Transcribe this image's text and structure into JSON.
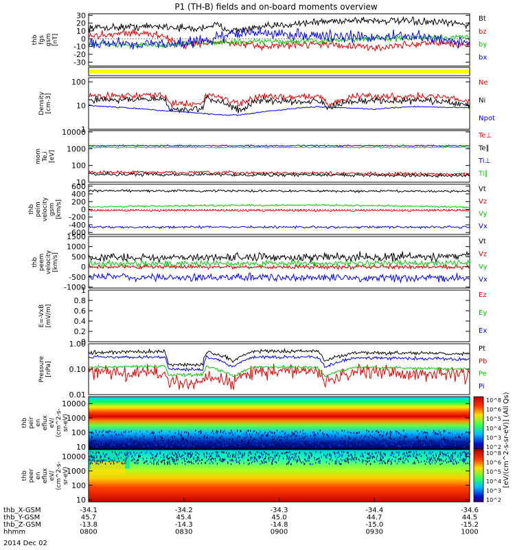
{
  "title": "P1 (TH-B) fields and on-board moments overview",
  "date_label": "2014 Dec 02",
  "colors": {
    "black": "#000000",
    "red": "#e00000",
    "green": "#00cc00",
    "blue": "#0000ee",
    "yellow": "#ffff00"
  },
  "chart_data": [
    {
      "id": "fgs",
      "type": "line",
      "ylabel": [
        "thb",
        "fgs",
        "gsm",
        "[nT]"
      ],
      "ylim": [
        -35,
        32
      ],
      "scale": "linear",
      "yticks": [
        30,
        20,
        10,
        0,
        -10,
        -20,
        -30
      ],
      "series": [
        {
          "name": "Bt",
          "color": "black",
          "x": [
            0,
            20,
            28,
            33,
            38,
            45,
            55,
            70,
            85,
            95,
            100
          ],
          "values": [
            14,
            16,
            12,
            18,
            10,
            14,
            20,
            24,
            22,
            20,
            18
          ],
          "noise": 4
        },
        {
          "name": "bz",
          "color": "red",
          "x": [
            0,
            10,
            18,
            25,
            33,
            45,
            60,
            75,
            90,
            100
          ],
          "values": [
            3,
            8,
            5,
            -8,
            -4,
            -10,
            -6,
            -12,
            -5,
            -8
          ],
          "noise": 4
        },
        {
          "name": "by",
          "color": "green",
          "x": [
            0,
            20,
            30,
            45,
            60,
            75,
            90,
            100
          ],
          "values": [
            -7,
            -9,
            -5,
            -4,
            -3,
            0,
            1,
            2
          ],
          "noise": 3
        },
        {
          "name": "bx",
          "color": "blue",
          "x": [
            0,
            20,
            30,
            40,
            55,
            70,
            85,
            100
          ],
          "values": [
            -5,
            -7,
            -3,
            8,
            5,
            2,
            3,
            -5
          ],
          "noise": 6
        }
      ]
    },
    {
      "id": "flags",
      "type": "bar",
      "ylabel": []
    },
    {
      "id": "density",
      "type": "line",
      "ylabel": [
        "Density",
        "[cm-3]"
      ],
      "ylim": [
        1,
        150
      ],
      "scale": "log",
      "yticks": [
        100,
        10,
        1
      ],
      "series": [
        {
          "name": "Ne",
          "color": "red",
          "x": [
            0,
            20,
            21,
            30,
            31,
            40,
            45,
            50,
            55,
            60,
            63,
            70,
            80,
            90,
            100
          ],
          "values": [
            25,
            27,
            12,
            12,
            30,
            10,
            25,
            24,
            23,
            26,
            10,
            25,
            24,
            25,
            15
          ],
          "noise": 0.12
        },
        {
          "name": "Ni",
          "color": "black",
          "x": [
            0,
            20,
            21,
            30,
            31,
            40,
            45,
            50,
            55,
            60,
            63,
            70,
            80,
            90,
            100
          ],
          "values": [
            18,
            18,
            7,
            7,
            20,
            6,
            16,
            16,
            15,
            17,
            7,
            16,
            16,
            16,
            10
          ],
          "noise": 0.12
        },
        {
          "name": "Npot",
          "color": "blue",
          "x": [
            0,
            10,
            20,
            35,
            40,
            60,
            75,
            85,
            100
          ],
          "values": [
            10,
            8,
            6,
            4,
            4,
            9,
            7,
            9,
            8
          ],
          "noise": 0.02
        }
      ]
    },
    {
      "id": "temperature",
      "type": "line",
      "ylabel": [
        "mom",
        "Te,i",
        "[eV]"
      ],
      "ylim": [
        10,
        12000
      ],
      "scale": "log",
      "yticks": [
        10000,
        1000,
        100,
        10
      ],
      "series": [
        {
          "name": "Te⊥",
          "color": "red",
          "x": [
            0,
            100
          ],
          "values": [
            40,
            30
          ],
          "noise": 0.08
        },
        {
          "name": "Te∥",
          "color": "black",
          "x": [
            0,
            100
          ],
          "values": [
            30,
            25
          ],
          "noise": 0.08
        },
        {
          "name": "Ti⊥",
          "color": "blue",
          "x": [
            0,
            100
          ],
          "values": [
            1500,
            1500
          ],
          "noise": 0.04
        },
        {
          "name": "Ti∥",
          "color": "green",
          "x": [
            0,
            100
          ],
          "values": [
            1200,
            1200
          ],
          "noise": 0.04
        }
      ]
    },
    {
      "id": "peim",
      "type": "line",
      "ylabel": [
        "thb",
        "peim",
        "velocity",
        "gsm",
        "[km/s]"
      ],
      "ylim": [
        -650,
        650
      ],
      "scale": "linear",
      "yticks": [
        600,
        400,
        200,
        0,
        -200,
        -400,
        -600
      ],
      "series": [
        {
          "name": "Vt",
          "color": "black",
          "x": [
            0,
            100
          ],
          "values": [
            480,
            470
          ],
          "noise": 25
        },
        {
          "name": "Vz",
          "color": "red",
          "x": [
            0,
            100
          ],
          "values": [
            -30,
            -30
          ],
          "noise": 20
        },
        {
          "name": "Vy",
          "color": "green",
          "x": [
            0,
            20,
            35,
            60,
            100
          ],
          "values": [
            60,
            90,
            100,
            110,
            60
          ],
          "noise": 20
        },
        {
          "name": "Vx",
          "color": "blue",
          "x": [
            0,
            100
          ],
          "values": [
            -460,
            -460
          ],
          "noise": 25
        }
      ]
    },
    {
      "id": "peem",
      "type": "line",
      "ylabel": [
        "thb",
        "peem",
        "velocity",
        "[km/s]"
      ],
      "ylim": [
        -1050,
        1500
      ],
      "scale": "linear",
      "yticks": [
        1500,
        1000,
        500,
        0,
        -500,
        -1000
      ],
      "series": [
        {
          "name": "Vt",
          "color": "black",
          "x": [
            0,
            100
          ],
          "values": [
            450,
            500
          ],
          "noise": 180
        },
        {
          "name": "Vz",
          "color": "red",
          "x": [
            0,
            100
          ],
          "values": [
            0,
            0
          ],
          "noise": 90
        },
        {
          "name": "Vy",
          "color": "green",
          "x": [
            0,
            100
          ],
          "values": [
            150,
            180
          ],
          "noise": 130
        },
        {
          "name": "Vx",
          "color": "blue",
          "x": [
            0,
            100
          ],
          "values": [
            -500,
            -550
          ],
          "noise": 160
        }
      ]
    },
    {
      "id": "efield",
      "type": "line",
      "ylabel": [
        "E=-VxB",
        "[mV/m]"
      ],
      "ylim": [
        0,
        1
      ],
      "scale": "linear",
      "yticks": [
        1.0,
        0.8,
        0.6,
        0.4,
        0.2,
        0.0
      ],
      "series": [
        {
          "name": "Ez",
          "color": "red",
          "x": [],
          "values": [],
          "noise": 0
        },
        {
          "name": "Ey",
          "color": "green",
          "x": [],
          "values": [],
          "noise": 0
        },
        {
          "name": "Ex",
          "color": "blue",
          "x": [],
          "values": [],
          "noise": 0
        }
      ]
    },
    {
      "id": "pressure",
      "type": "line",
      "ylabel": [
        "Pressure",
        "[nPa]"
      ],
      "ylim": [
        0.01,
        1
      ],
      "scale": "log",
      "yticks": [
        1.0,
        0.1,
        0.01
      ],
      "ytick_labels": [
        "1.00",
        "0.10",
        "0.01"
      ],
      "series": [
        {
          "name": "Pt",
          "color": "black",
          "x": [
            0,
            20,
            21,
            30,
            31,
            38,
            43,
            60,
            62,
            70,
            100
          ],
          "values": [
            0.45,
            0.5,
            0.15,
            0.15,
            0.5,
            0.2,
            0.5,
            0.5,
            0.2,
            0.45,
            0.4
          ],
          "noise": 0.06
        },
        {
          "name": "Pb",
          "color": "red",
          "x": [
            0,
            20,
            21,
            30,
            31,
            38,
            43,
            60,
            62,
            70,
            100
          ],
          "values": [
            0.08,
            0.07,
            0.03,
            0.03,
            0.06,
            0.03,
            0.08,
            0.08,
            0.03,
            0.08,
            0.06
          ],
          "noise": 0.25
        },
        {
          "name": "Pe",
          "color": "green",
          "x": [
            0,
            20,
            21,
            30,
            31,
            38,
            43,
            60,
            62,
            70,
            100
          ],
          "values": [
            0.12,
            0.13,
            0.06,
            0.06,
            0.13,
            0.05,
            0.12,
            0.12,
            0.05,
            0.12,
            0.1
          ],
          "noise": 0.05
        },
        {
          "name": "Pi",
          "color": "blue",
          "x": [
            0,
            20,
            21,
            30,
            31,
            38,
            43,
            60,
            62,
            70,
            100
          ],
          "values": [
            0.3,
            0.3,
            0.1,
            0.1,
            0.3,
            0.12,
            0.3,
            0.3,
            0.12,
            0.28,
            0.25
          ],
          "noise": 0.05
        }
      ]
    },
    {
      "id": "peir",
      "type": "heatmap",
      "ylabel": [
        "thb",
        "peir",
        "en",
        "eflux",
        "eV/",
        "(cm^2-s-",
        "sr-eV)"
      ],
      "ylim": [
        7,
        30000
      ],
      "scale": "log",
      "yticks": [
        10000,
        1000,
        100,
        10
      ]
    },
    {
      "id": "peer",
      "type": "heatmap",
      "ylabel": [
        "thb",
        "peer",
        "en",
        "eflux",
        "eV/",
        "(cm^2-s-",
        "sr-eV)"
      ],
      "ylim": [
        7,
        30000
      ],
      "scale": "log",
      "yticks": [
        10000,
        1000,
        100,
        10
      ]
    }
  ],
  "colorbar": {
    "label": "[eV/(cm^2-s-sr-eV)] (All Qs)",
    "ticks": [
      "10^8",
      "10^6",
      "10^5",
      "10^4",
      "10^3",
      "10^2",
      "10^8",
      "10^6",
      "10^5",
      "10^4",
      "10^3",
      "10^2"
    ]
  },
  "xaxis": {
    "rows": [
      {
        "name": "thb_X-GSM",
        "values": [
          "-34.1",
          "-34.2",
          "-34.3",
          "-34.4",
          "-34.6"
        ]
      },
      {
        "name": "thb_Y-GSM",
        "values": [
          "45.7",
          "45.4",
          "45.0",
          "44.7",
          "44.5"
        ]
      },
      {
        "name": "thb_Z-GSM",
        "values": [
          "-13.8",
          "-14.3",
          "-14.8",
          "-15.0",
          "-15.2"
        ]
      },
      {
        "name": "hhmm",
        "values": [
          "0800",
          "0830",
          "0900",
          "0930",
          "1000"
        ]
      }
    ]
  }
}
